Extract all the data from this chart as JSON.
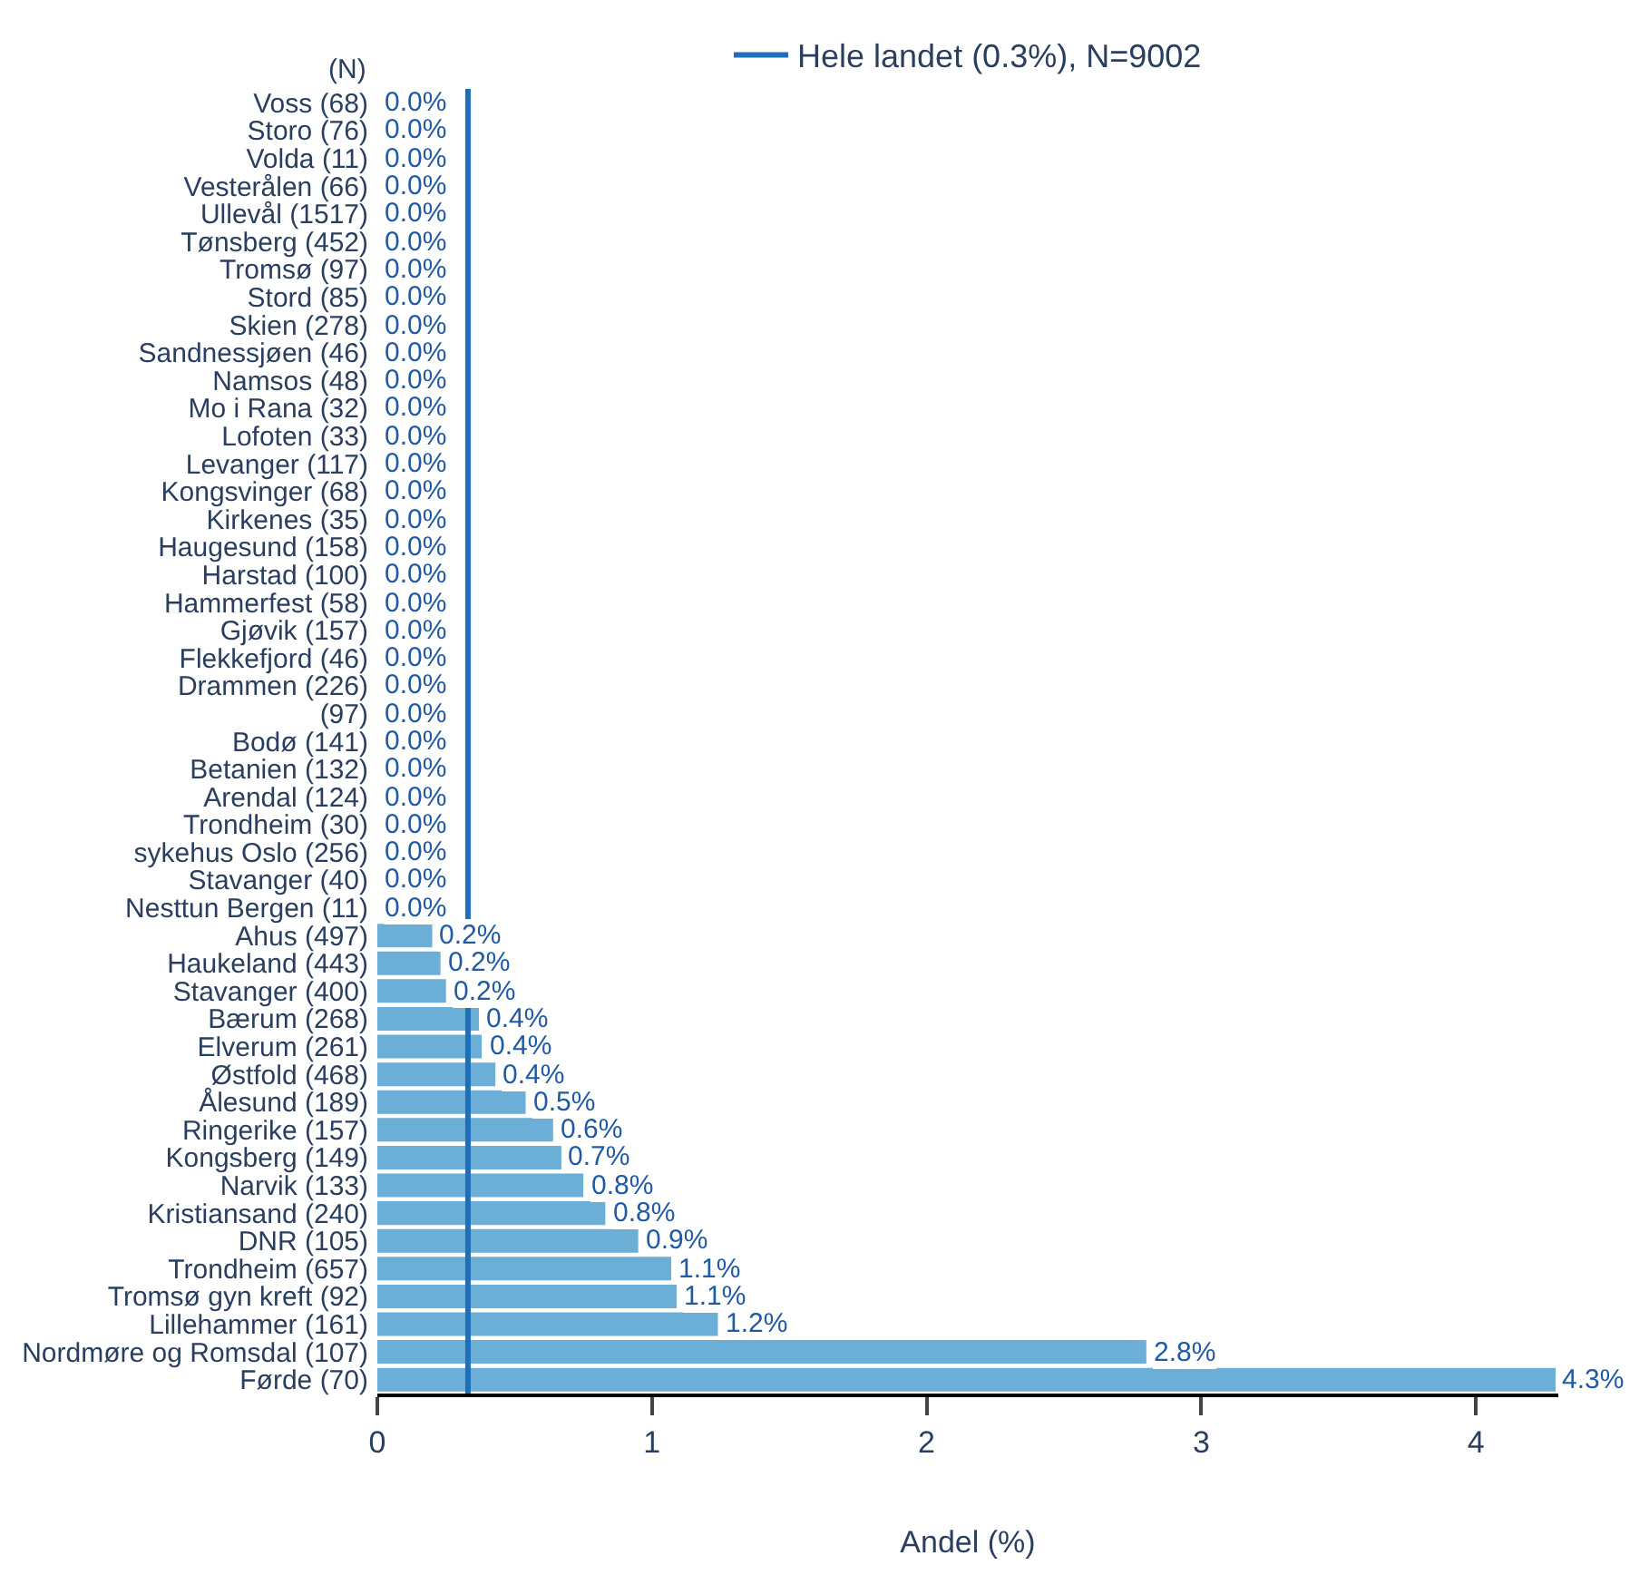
{
  "chart_data": {
    "type": "bar",
    "orientation": "horizontal",
    "xlabel": "Andel (%)",
    "annotations": [
      "(N)"
    ],
    "categories": [
      "Voss (68)",
      "Storo (76)",
      "Volda (11)",
      "Vesterålen (66)",
      "Ullevål (1517)",
      "Tønsberg (452)",
      "Tromsø (97)",
      "Stord (85)",
      "Skien (278)",
      "Sandnessjøen (46)",
      "Namsos (48)",
      "Mo i Rana (32)",
      "Lofoten (33)",
      "Levanger (117)",
      "Kongsvinger (68)",
      "Kirkenes (35)",
      "Haugesund (158)",
      "Harstad (100)",
      "Hammerfest (58)",
      "Gjøvik (157)",
      "Flekkefjord (46)",
      "Drammen (226)",
      "(97)",
      "Bodø (141)",
      "Betanien (132)",
      "Arendal (124)",
      "Trondheim (30)",
      "sykehus Oslo (256)",
      "Stavanger (40)",
      "Nesttun Bergen (11)",
      "Ahus (497)",
      "Haukeland (443)",
      "Stavanger (400)",
      "Bærum (268)",
      "Elverum (261)",
      "Østfold (468)",
      "Ålesund (189)",
      "Ringerike (157)",
      "Kongsberg (149)",
      "Narvik (133)",
      "Kristiansand (240)",
      "DNR (105)",
      "Trondheim (657)",
      "Tromsø gyn kreft (92)",
      "Lillehammer (161)",
      "Nordmøre og Romsdal (107)",
      "Førde (70)"
    ],
    "series": [
      {
        "color": "#6baed6",
        "values": [
          0,
          0,
          0,
          0,
          0,
          0,
          0,
          0,
          0,
          0,
          0,
          0,
          0,
          0,
          0,
          0,
          0,
          0,
          0,
          0,
          0,
          0,
          0,
          0,
          0,
          0,
          0,
          0,
          0,
          0,
          0.2,
          0.23,
          0.25,
          0.37,
          0.38,
          0.43,
          0.54,
          0.64,
          0.67,
          0.75,
          0.83,
          0.95,
          1.07,
          1.09,
          1.24,
          2.8,
          4.29
        ],
        "value_labels": [
          "0.0%",
          "0.0%",
          "0.0%",
          "0.0%",
          "0.0%",
          "0.0%",
          "0.0%",
          "0.0%",
          "0.0%",
          "0.0%",
          "0.0%",
          "0.0%",
          "0.0%",
          "0.0%",
          "0.0%",
          "0.0%",
          "0.0%",
          "0.0%",
          "0.0%",
          "0.0%",
          "0.0%",
          "0.0%",
          "0.0%",
          "0.0%",
          "0.0%",
          "0.0%",
          "0.0%",
          "0.0%",
          "0.0%",
          "0.0%",
          "0.2%",
          "0.2%",
          "0.2%",
          "0.4%",
          "0.4%",
          "0.4%",
          "0.5%",
          "0.6%",
          "0.7%",
          "0.8%",
          "0.8%",
          "0.9%",
          "1.1%",
          "1.1%",
          "1.2%",
          "2.8%",
          "4.3%"
        ]
      }
    ],
    "xlim": [
      0,
      4.3
    ],
    "xticks": [
      0,
      1,
      2,
      3,
      4
    ],
    "ref_lines": [
      {
        "axis": "x",
        "value": 0.33,
        "label": "Hele landet (0.3%), N=9002",
        "color": "#1f6fb8"
      }
    ],
    "legend": "top"
  }
}
